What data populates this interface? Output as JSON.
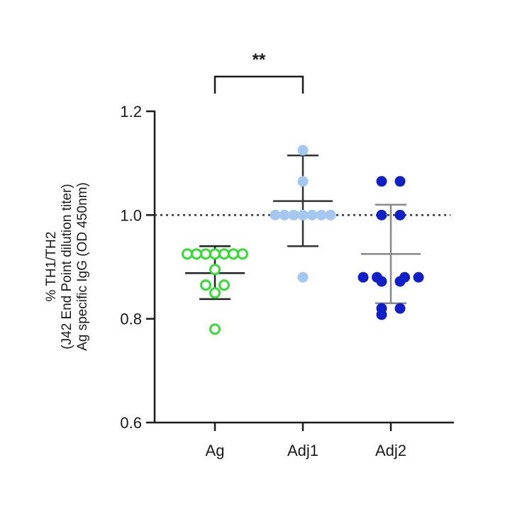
{
  "chart_data": {
    "type": "scatter",
    "title": "",
    "ylabel_lines": [
      "% TH1/TH2",
      "(J42 End Point dilution titer)",
      "Ag specific IgG (OD 450nm)"
    ],
    "xlabel": "",
    "categories": [
      "Ag",
      "Adj1",
      "Adj2"
    ],
    "ylim": [
      0.6,
      1.2
    ],
    "yticks": [
      0.6,
      0.8,
      1.0,
      1.2
    ],
    "ytick_labels": [
      "0.6",
      "0.8",
      "1.0",
      "1.2"
    ],
    "reference_line": 1.0,
    "grid": false,
    "series": [
      {
        "category": "Ag",
        "color": "#33dd33",
        "marker": "open-circle",
        "points": [
          {
            "dx": -3,
            "y": 0.925
          },
          {
            "dx": -2,
            "y": 0.925
          },
          {
            "dx": -1,
            "y": 0.925
          },
          {
            "dx": 0,
            "y": 0.925
          },
          {
            "dx": 1,
            "y": 0.925
          },
          {
            "dx": 2,
            "y": 0.925
          },
          {
            "dx": 3,
            "y": 0.925
          },
          {
            "dx": 0,
            "y": 0.895
          },
          {
            "dx": -1,
            "y": 0.865
          },
          {
            "dx": 1,
            "y": 0.865
          },
          {
            "dx": 0,
            "y": 0.85
          },
          {
            "dx": 0,
            "y": 0.78
          }
        ],
        "mean": 0.888,
        "sd_upper": 0.94,
        "sd_lower": 0.838
      },
      {
        "category": "Adj1",
        "color": "#a4c8f0",
        "marker": "filled-circle",
        "points": [
          {
            "dx": 0,
            "y": 1.125
          },
          {
            "dx": 0,
            "y": 1.065
          },
          {
            "dx": -3,
            "y": 1.0
          },
          {
            "dx": -2,
            "y": 1.0
          },
          {
            "dx": -1,
            "y": 1.0
          },
          {
            "dx": 0,
            "y": 1.0
          },
          {
            "dx": 1,
            "y": 1.0
          },
          {
            "dx": 2,
            "y": 1.0
          },
          {
            "dx": 3,
            "y": 1.0
          },
          {
            "dx": 0,
            "y": 0.88
          }
        ],
        "mean": 1.027,
        "sd_upper": 1.115,
        "sd_lower": 0.94
      },
      {
        "category": "Adj2",
        "color": "#1020c8",
        "marker": "filled-circle",
        "points": [
          {
            "dx": -1,
            "y": 1.065
          },
          {
            "dx": 1,
            "y": 1.065
          },
          {
            "dx": -1,
            "y": 1.0
          },
          {
            "dx": 1,
            "y": 1.0
          },
          {
            "dx": -3,
            "y": 0.88
          },
          {
            "dx": -1.5,
            "y": 0.88
          },
          {
            "dx": 1.5,
            "y": 0.88
          },
          {
            "dx": 3,
            "y": 0.88
          },
          {
            "dx": -1,
            "y": 0.872
          },
          {
            "dx": 1,
            "y": 0.872
          },
          {
            "dx": -1,
            "y": 0.82
          },
          {
            "dx": 1,
            "y": 0.82
          },
          {
            "dx": -1,
            "y": 0.808
          }
        ],
        "mean": 0.925,
        "sd_upper": 1.02,
        "sd_lower": 0.83
      }
    ],
    "significance": [
      {
        "from": "Ag",
        "to": "Adj1",
        "label": "**"
      }
    ]
  }
}
